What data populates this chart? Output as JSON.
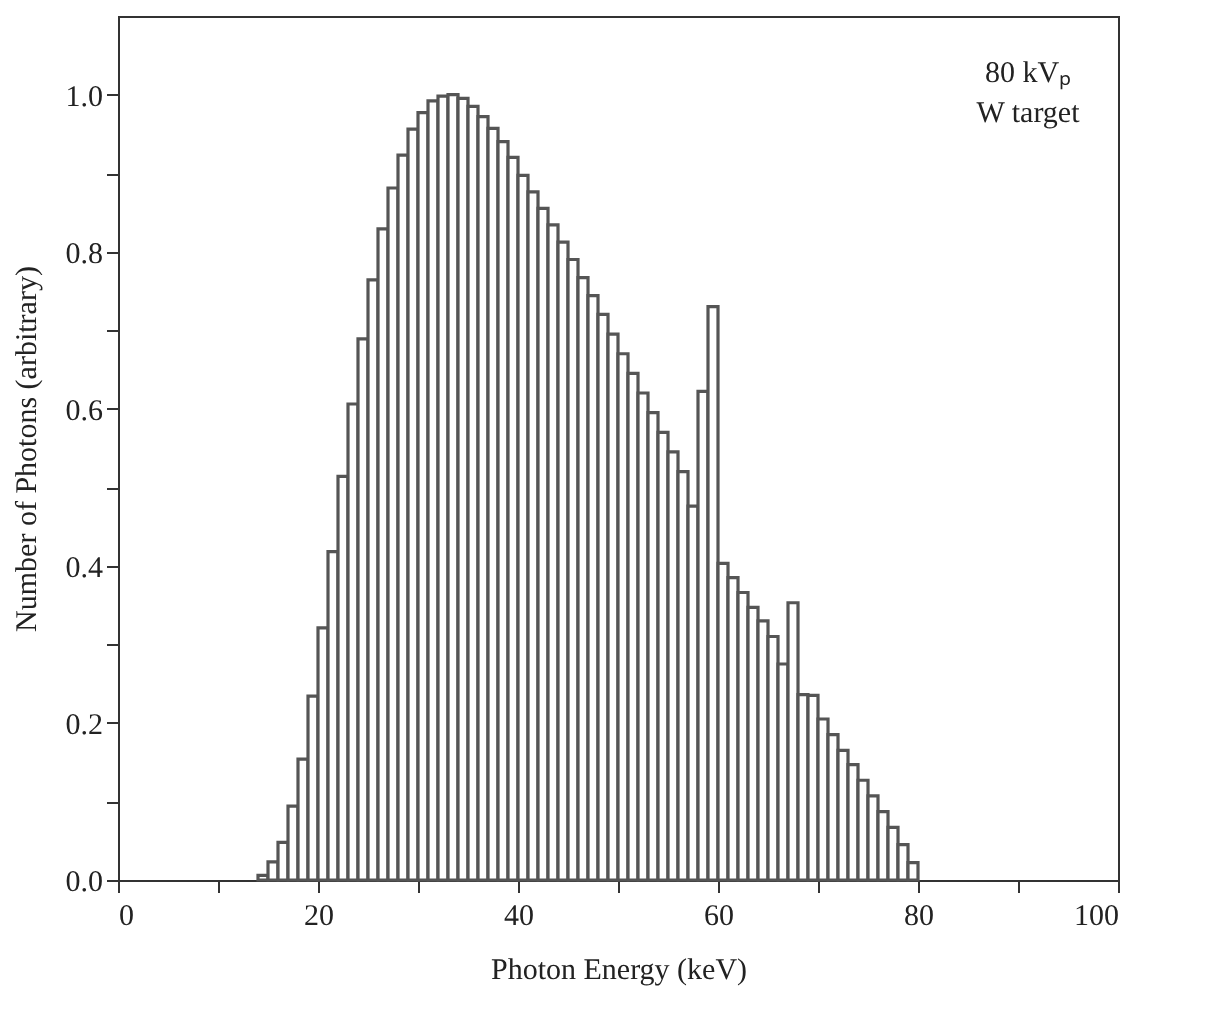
{
  "chart_data": {
    "type": "histogram",
    "xlabel": "Photon Energy (keV)",
    "ylabel": "Number of Photons (arbitrary)",
    "annotations": [
      "80 kVₚ",
      "W target"
    ],
    "bins": [
      14,
      15,
      16,
      17,
      18,
      19,
      20,
      21,
      22,
      23,
      24,
      25,
      26,
      27,
      28,
      29,
      30,
      31,
      32,
      33,
      34,
      35,
      36,
      37,
      38,
      39,
      40,
      41,
      42,
      43,
      44,
      45,
      46,
      47,
      48,
      49,
      50,
      51,
      52,
      53,
      54,
      55,
      56,
      57,
      58,
      59,
      60,
      61,
      62,
      63,
      64,
      65,
      66,
      67,
      68,
      69,
      70,
      71,
      72,
      73,
      74,
      75,
      76,
      77,
      78,
      79,
      80
    ],
    "values": [
      0.006,
      0.023,
      0.048,
      0.094,
      0.154,
      0.234,
      0.321,
      0.418,
      0.514,
      0.606,
      0.689,
      0.764,
      0.829,
      0.881,
      0.923,
      0.956,
      0.977,
      0.992,
      0.998,
      1.0,
      0.995,
      0.985,
      0.972,
      0.957,
      0.94,
      0.92,
      0.897,
      0.876,
      0.855,
      0.834,
      0.812,
      0.79,
      0.767,
      0.744,
      0.72,
      0.695,
      0.67,
      0.645,
      0.62,
      0.595,
      0.57,
      0.545,
      0.52,
      0.476,
      0.622,
      0.73,
      0.403,
      0.385,
      0.366,
      0.347,
      0.33,
      0.31,
      0.275,
      0.353,
      0.236,
      0.235,
      0.205,
      0.185,
      0.165,
      0.147,
      0.127,
      0.107,
      0.087,
      0.067,
      0.045,
      0.022
    ],
    "color": "#555555",
    "xlim": [
      0,
      100
    ],
    "xticks": [
      0,
      {
        "value": 10,
        "label": null
      },
      20,
      {
        "value": 30,
        "label": null
      },
      40,
      {
        "value": 50,
        "label": null
      },
      60,
      {
        "value": 70,
        "label": null
      },
      80,
      {
        "value": 90,
        "label": null
      },
      100
    ],
    "ylim": [
      0,
      1.1
    ],
    "yticks": [
      {
        "value": 0,
        "label": "0.0"
      },
      {
        "value": 0.1,
        "label": null
      },
      {
        "value": 0.2,
        "label": "0.2"
      },
      {
        "value": 0.3,
        "label": null
      },
      {
        "value": 0.4,
        "label": "0.4"
      },
      {
        "value": 0.5,
        "label": null
      },
      {
        "value": 0.6,
        "label": "0.6"
      },
      {
        "value": 0.7,
        "label": null
      },
      {
        "value": 0.8,
        "label": "0.8"
      },
      {
        "value": 0.9,
        "label": null
      },
      {
        "value": 1.0,
        "label": "1.0"
      }
    ],
    "grid": false
  }
}
